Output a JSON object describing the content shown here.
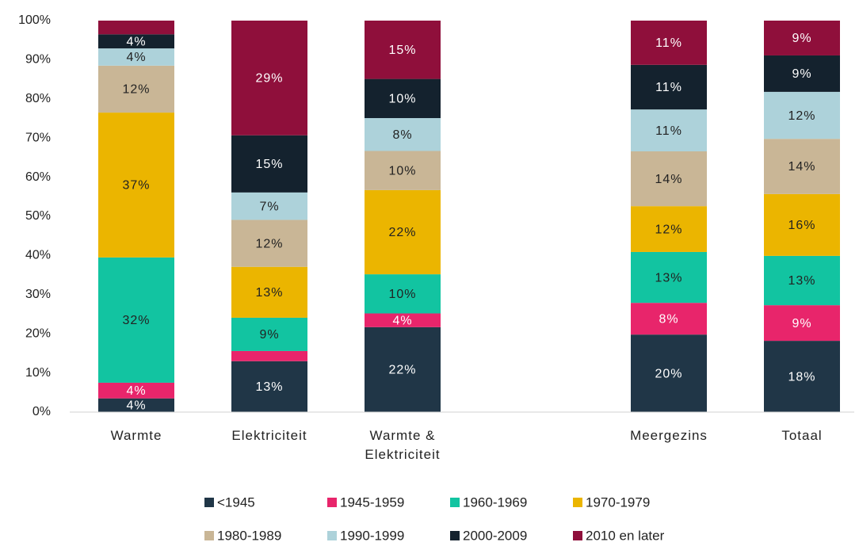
{
  "chart_data": {
    "type": "stacked_bar",
    "categories": [
      "Warmte",
      "Elektriciteit",
      "Warmte & Elektriciteit",
      null,
      "Meergezins",
      "Totaal"
    ],
    "series": [
      {
        "name": "<1945",
        "color": "#203647",
        "values": [
          3.5,
          13,
          21.7,
          null,
          19.8,
          18.2
        ],
        "value_labels": [
          "4%",
          "13%",
          "22%",
          null,
          "20%",
          "18%"
        ]
      },
      {
        "name": "1945-1959",
        "color": "#e8256b",
        "values": [
          4.0,
          2.6,
          3.5,
          null,
          8.1,
          9.1
        ],
        "value_labels": [
          "4%",
          null,
          "4%",
          null,
          "8%",
          "9%"
        ]
      },
      {
        "name": "1960-1969",
        "color": "#12c4a1",
        "values": [
          32.0,
          8.5,
          10,
          null,
          13,
          12.6
        ],
        "value_labels": [
          "32%",
          "9%",
          "10%",
          null,
          "13%",
          "13%"
        ]
      },
      {
        "name": "1970-1979",
        "color": "#ebb500",
        "values": [
          37.0,
          13,
          21.5,
          null,
          11.7,
          15.8
        ],
        "value_labels": [
          "37%",
          "13%",
          "22%",
          null,
          "12%",
          "16%"
        ]
      },
      {
        "name": "1980-1989",
        "color": "#c9b696",
        "values": [
          12.0,
          12,
          10,
          null,
          14,
          14.1
        ],
        "value_labels": [
          "12%",
          "12%",
          "10%",
          null,
          "14%",
          "14%"
        ]
      },
      {
        "name": "1990-1999",
        "color": "#add2da",
        "values": [
          4.4,
          7,
          8.4,
          null,
          10.7,
          12
        ],
        "value_labels": [
          "4%",
          "7%",
          "8%",
          null,
          "11%",
          "12%"
        ]
      },
      {
        "name": "2000-2009",
        "color": "#14222e",
        "values": [
          3.6,
          14.6,
          10,
          null,
          11.4,
          9.3
        ],
        "value_labels": [
          "4%",
          "15%",
          "10%",
          null,
          "11%",
          "9%"
        ]
      },
      {
        "name": "2010 en later",
        "color": "#8f0f3b",
        "values": [
          3.5,
          29.3,
          14.9,
          null,
          11.3,
          8.9
        ],
        "value_labels": [
          null,
          "29%",
          "15%",
          null,
          "11%",
          "9%"
        ]
      }
    ],
    "ylim": [
      0,
      100
    ],
    "yticks": [
      {
        "value": 0,
        "label": "0%"
      },
      {
        "value": 10,
        "label": "10%"
      },
      {
        "value": 20,
        "label": "20%"
      },
      {
        "value": 30,
        "label": "30%"
      },
      {
        "value": 40,
        "label": "40%"
      },
      {
        "value": 50,
        "label": "50%"
      },
      {
        "value": 60,
        "label": "60%"
      },
      {
        "value": 70,
        "label": "70%"
      },
      {
        "value": 80,
        "label": "80%"
      },
      {
        "value": 90,
        "label": "90%"
      },
      {
        "value": 100,
        "label": "100%"
      }
    ],
    "grid": false,
    "legend": "bottom"
  }
}
